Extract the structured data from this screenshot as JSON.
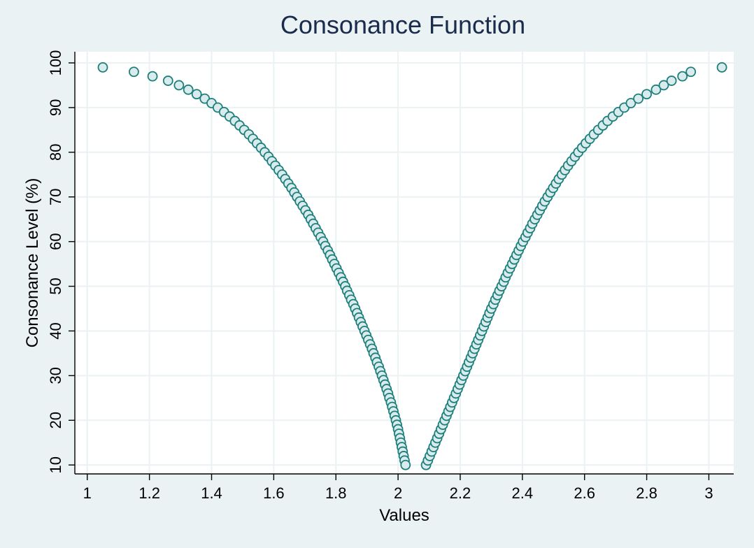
{
  "chart_data": {
    "type": "scatter",
    "title": "Consonance Function",
    "xlabel": "Values",
    "ylabel": "Consonance Level (%)",
    "xlim": [
      0.96,
      3.08
    ],
    "ylim": [
      8,
      102.5
    ],
    "xticks": [
      1,
      1.2,
      1.4,
      1.6,
      1.8,
      2,
      2.2,
      2.4,
      2.6,
      2.8,
      3
    ],
    "xtick_labels": [
      "1",
      "1.2",
      "1.4",
      "1.6",
      "1.8",
      "2",
      "2.2",
      "2.4",
      "2.6",
      "2.8",
      "3"
    ],
    "yticks": [
      10,
      20,
      30,
      40,
      50,
      60,
      70,
      80,
      90,
      100
    ],
    "ytick_labels": [
      "10",
      "20",
      "30",
      "40",
      "50",
      "60",
      "70",
      "80",
      "90",
      "100"
    ],
    "grid": true,
    "legend": "none",
    "marker": {
      "shape": "circle",
      "fill": "#d9ebec",
      "stroke": "#1d7f7b"
    },
    "series": [
      {
        "points": [
          [
            1.05,
            99
          ],
          [
            1.15,
            98
          ],
          [
            1.21,
            97
          ],
          [
            1.26,
            96
          ],
          [
            1.295,
            95
          ],
          [
            1.325,
            94
          ],
          [
            1.352,
            93
          ],
          [
            1.378,
            92
          ],
          [
            1.4,
            91
          ],
          [
            1.42,
            90
          ],
          [
            1.44,
            89
          ],
          [
            1.458,
            88
          ],
          [
            1.475,
            87
          ],
          [
            1.49,
            86
          ],
          [
            1.505,
            85
          ],
          [
            1.52,
            84
          ],
          [
            1.533,
            83
          ],
          [
            1.546,
            82
          ],
          [
            1.559,
            81
          ],
          [
            1.571,
            80
          ],
          [
            1.583,
            79
          ],
          [
            1.594,
            78
          ],
          [
            1.605,
            77
          ],
          [
            1.616,
            76
          ],
          [
            1.627,
            75
          ],
          [
            1.637,
            74
          ],
          [
            1.647,
            73
          ],
          [
            1.657,
            72
          ],
          [
            1.666,
            71
          ],
          [
            1.675,
            70
          ],
          [
            1.684,
            69
          ],
          [
            1.693,
            68
          ],
          [
            1.702,
            67
          ],
          [
            1.711,
            66
          ],
          [
            1.719,
            65
          ],
          [
            1.727,
            64
          ],
          [
            1.735,
            63
          ],
          [
            1.743,
            62
          ],
          [
            1.751,
            61
          ],
          [
            1.759,
            60
          ],
          [
            1.766,
            59
          ],
          [
            1.774,
            58
          ],
          [
            1.781,
            57
          ],
          [
            1.788,
            56
          ],
          [
            1.795,
            55
          ],
          [
            1.802,
            54
          ],
          [
            1.809,
            53
          ],
          [
            1.816,
            52
          ],
          [
            1.823,
            51
          ],
          [
            1.83,
            50
          ],
          [
            1.836,
            49
          ],
          [
            1.843,
            48
          ],
          [
            1.849,
            47
          ],
          [
            1.856,
            46
          ],
          [
            1.862,
            45
          ],
          [
            1.868,
            44
          ],
          [
            1.874,
            43
          ],
          [
            1.88,
            42
          ],
          [
            1.886,
            41
          ],
          [
            1.892,
            40
          ],
          [
            1.898,
            39
          ],
          [
            1.904,
            38
          ],
          [
            1.91,
            37
          ],
          [
            1.916,
            36
          ],
          [
            1.921,
            35
          ],
          [
            1.927,
            34
          ],
          [
            1.932,
            33
          ],
          [
            1.938,
            32
          ],
          [
            1.943,
            31
          ],
          [
            1.948,
            30
          ],
          [
            1.953,
            29
          ],
          [
            1.958,
            28
          ],
          [
            1.963,
            27
          ],
          [
            1.968,
            26
          ],
          [
            1.972,
            25
          ],
          [
            1.977,
            24
          ],
          [
            1.981,
            23
          ],
          [
            1.985,
            22
          ],
          [
            1.989,
            21
          ],
          [
            1.993,
            20
          ],
          [
            1.9965,
            19
          ],
          [
            2,
            18
          ],
          [
            2.003,
            17
          ],
          [
            2.006,
            16
          ],
          [
            2.009,
            15
          ],
          [
            2.012,
            14
          ],
          [
            2.015,
            13
          ],
          [
            2.018,
            12
          ],
          [
            2.021,
            11
          ],
          [
            2.024,
            10
          ],
          [
            2.09,
            10
          ],
          [
            2.096,
            11
          ],
          [
            2.102,
            12
          ],
          [
            2.108,
            13
          ],
          [
            2.114,
            14
          ],
          [
            2.12,
            15
          ],
          [
            2.126,
            16
          ],
          [
            2.132,
            17
          ],
          [
            2.138,
            18
          ],
          [
            2.144,
            19
          ],
          [
            2.15,
            20
          ],
          [
            2.156,
            21
          ],
          [
            2.162,
            22
          ],
          [
            2.168,
            23
          ],
          [
            2.174,
            24
          ],
          [
            2.18,
            25
          ],
          [
            2.186,
            26
          ],
          [
            2.192,
            27
          ],
          [
            2.198,
            28
          ],
          [
            2.204,
            29
          ],
          [
            2.21,
            30
          ],
          [
            2.216,
            31
          ],
          [
            2.222,
            32
          ],
          [
            2.228,
            33
          ],
          [
            2.234,
            34
          ],
          [
            2.24,
            35
          ],
          [
            2.246,
            36
          ],
          [
            2.252,
            37
          ],
          [
            2.258,
            38
          ],
          [
            2.264,
            39
          ],
          [
            2.27,
            40
          ],
          [
            2.276,
            41
          ],
          [
            2.282,
            42
          ],
          [
            2.288,
            43
          ],
          [
            2.294,
            44
          ],
          [
            2.3,
            45
          ],
          [
            2.307,
            46
          ],
          [
            2.313,
            47
          ],
          [
            2.32,
            48
          ],
          [
            2.326,
            49
          ],
          [
            2.333,
            50
          ],
          [
            2.34,
            51
          ],
          [
            2.346,
            52
          ],
          [
            2.353,
            53
          ],
          [
            2.36,
            54
          ],
          [
            2.367,
            55
          ],
          [
            2.374,
            56
          ],
          [
            2.381,
            57
          ],
          [
            2.388,
            58
          ],
          [
            2.395,
            59
          ],
          [
            2.402,
            60
          ],
          [
            2.41,
            61
          ],
          [
            2.417,
            62
          ],
          [
            2.425,
            63
          ],
          [
            2.432,
            64
          ],
          [
            2.44,
            65
          ],
          [
            2.448,
            66
          ],
          [
            2.456,
            67
          ],
          [
            2.464,
            68
          ],
          [
            2.472,
            69
          ],
          [
            2.481,
            70
          ],
          [
            2.49,
            71
          ],
          [
            2.499,
            72
          ],
          [
            2.508,
            73
          ],
          [
            2.517,
            74
          ],
          [
            2.527,
            75
          ],
          [
            2.537,
            76
          ],
          [
            2.547,
            77
          ],
          [
            2.558,
            78
          ],
          [
            2.569,
            79
          ],
          [
            2.58,
            80
          ],
          [
            2.592,
            81
          ],
          [
            2.604,
            82
          ],
          [
            2.617,
            83
          ],
          [
            2.63,
            84
          ],
          [
            2.644,
            85
          ],
          [
            2.659,
            86
          ],
          [
            2.674,
            87
          ],
          [
            2.691,
            88
          ],
          [
            2.709,
            89
          ],
          [
            2.728,
            90
          ],
          [
            2.749,
            91
          ],
          [
            2.773,
            92
          ],
          [
            2.8,
            93
          ],
          [
            2.83,
            94
          ],
          [
            2.855,
            95
          ],
          [
            2.88,
            96
          ],
          [
            2.915,
            97
          ],
          [
            2.942,
            98
          ],
          [
            3.042,
            99
          ]
        ]
      }
    ]
  }
}
